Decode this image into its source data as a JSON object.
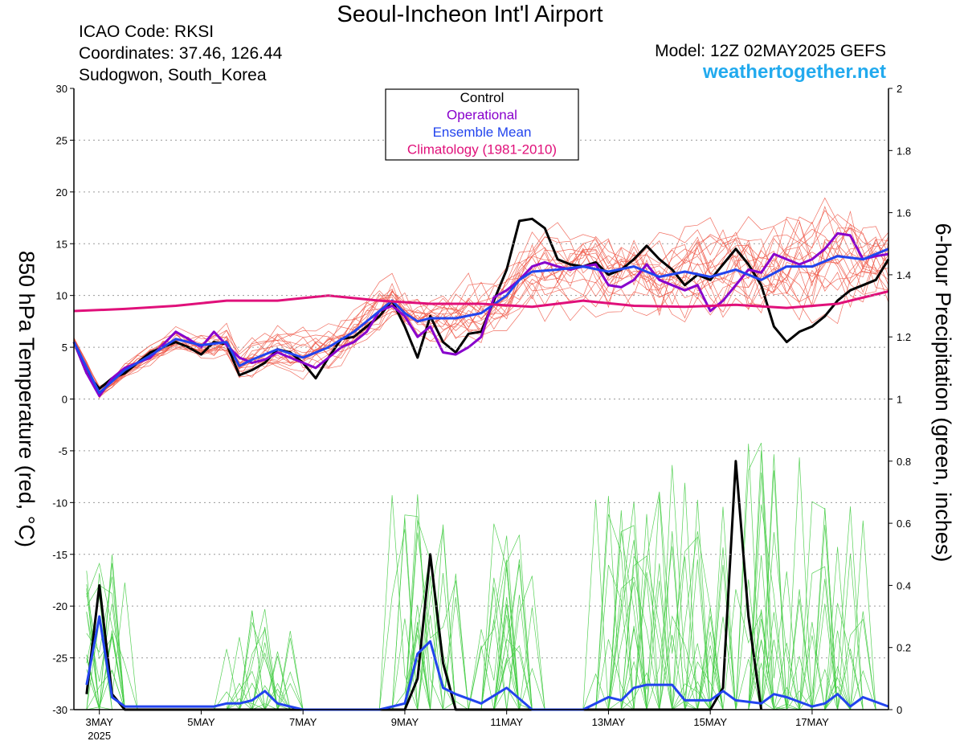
{
  "header": {
    "title": "Seoul-Incheon Int'l Airport",
    "icao": "ICAO Code: RKSI",
    "coordinates": "Coordinates: 37.46, 126.44",
    "location": "Sudogwon, South_Korea",
    "model": "Model: 12Z 02MAY2025 GEFS",
    "site": "weathertogether.net"
  },
  "colors": {
    "control": "#000000",
    "operational": "#8800cc",
    "ensemble_mean": "#2244ee",
    "climatology": "#e0107a",
    "members_temp": "#ee5544",
    "members_precip": "#44cc44",
    "site": "#22aaee"
  },
  "chart_data": {
    "type": "line",
    "grid": "horizontal dotted",
    "legend_placement": "top-center",
    "legend": [
      {
        "label": "Control",
        "color": "#000000"
      },
      {
        "label": "Operational",
        "color": "#8800cc"
      },
      {
        "label": "Ensemble Mean",
        "color": "#2244ee"
      },
      {
        "label": "Climatology (1981-2010)",
        "color": "#e0107a"
      }
    ],
    "y_left": {
      "label": "850 hPa Temperature (red, °C)",
      "range": [
        -30,
        30
      ],
      "ticks": [
        -30,
        -25,
        -20,
        -15,
        -10,
        -5,
        0,
        5,
        10,
        15,
        20,
        25,
        30
      ]
    },
    "y_right": {
      "label": "6-hour Precipitation (green, inches)",
      "range": [
        0,
        2
      ],
      "ticks": [
        0,
        0.2,
        0.4,
        0.6,
        0.8,
        1,
        1.2,
        1.4,
        1.6,
        1.8,
        2
      ]
    },
    "x": {
      "range_days": [
        2.5,
        18.5
      ],
      "ticks": [
        {
          "day": 3,
          "label": "3MAY"
        },
        {
          "day": 5,
          "label": "5MAY"
        },
        {
          "day": 7,
          "label": "7MAY"
        },
        {
          "day": 9,
          "label": "9MAY"
        },
        {
          "day": 11,
          "label": "11MAY"
        },
        {
          "day": 13,
          "label": "13MAY"
        },
        {
          "day": 15,
          "label": "15MAY"
        },
        {
          "day": 17,
          "label": "17MAY"
        }
      ],
      "year_label": "2025"
    },
    "temperature_series": [
      {
        "name": "Control",
        "points": [
          [
            2.5,
            5.5
          ],
          [
            2.75,
            2.5
          ],
          [
            3,
            1
          ],
          [
            3.25,
            2
          ],
          [
            3.5,
            2.5
          ],
          [
            4,
            4.5
          ],
          [
            4.5,
            5.5
          ],
          [
            4.75,
            5
          ],
          [
            5,
            4.3
          ],
          [
            5.25,
            5.5
          ],
          [
            5.5,
            5.3
          ],
          [
            5.75,
            2.3
          ],
          [
            6,
            2.8
          ],
          [
            6.25,
            3.5
          ],
          [
            6.5,
            4.8
          ],
          [
            6.75,
            4.5
          ],
          [
            7,
            3.5
          ],
          [
            7.25,
            2
          ],
          [
            7.5,
            4
          ],
          [
            7.75,
            5.8
          ],
          [
            8,
            6
          ],
          [
            8.25,
            7
          ],
          [
            8.5,
            8
          ],
          [
            8.75,
            9.5
          ],
          [
            9,
            7
          ],
          [
            9.25,
            4
          ],
          [
            9.5,
            8
          ],
          [
            9.75,
            5.5
          ],
          [
            10,
            4.5
          ],
          [
            10.25,
            6.3
          ],
          [
            10.5,
            6.5
          ],
          [
            10.75,
            9.5
          ],
          [
            11,
            12.5
          ],
          [
            11.25,
            17.2
          ],
          [
            11.5,
            17.4
          ],
          [
            11.75,
            16.5
          ],
          [
            12,
            13.5
          ],
          [
            12.25,
            13
          ],
          [
            12.5,
            12.8
          ],
          [
            12.75,
            13.2
          ],
          [
            13,
            12
          ],
          [
            13.25,
            12.5
          ],
          [
            13.5,
            13.5
          ],
          [
            13.75,
            14.8
          ],
          [
            14,
            13.5
          ],
          [
            14.25,
            12.5
          ],
          [
            14.5,
            11
          ],
          [
            14.75,
            12
          ],
          [
            15,
            11.5
          ],
          [
            15.25,
            13
          ],
          [
            15.5,
            14.5
          ],
          [
            15.75,
            13
          ],
          [
            16,
            11
          ],
          [
            16.25,
            7
          ],
          [
            16.5,
            5.5
          ],
          [
            16.75,
            6.5
          ],
          [
            17,
            7
          ],
          [
            17.25,
            8
          ],
          [
            17.5,
            9.5
          ],
          [
            17.75,
            10.5
          ],
          [
            18,
            11
          ],
          [
            18.25,
            11.5
          ],
          [
            18.5,
            13.5
          ]
        ]
      },
      {
        "name": "Operational",
        "points": [
          [
            2.5,
            5.5
          ],
          [
            2.75,
            2.5
          ],
          [
            3,
            0.3
          ],
          [
            3.25,
            2
          ],
          [
            3.5,
            3
          ],
          [
            4,
            4
          ],
          [
            4.5,
            6.5
          ],
          [
            4.75,
            5.8
          ],
          [
            5,
            5
          ],
          [
            5.25,
            6.5
          ],
          [
            5.5,
            5.2
          ],
          [
            5.75,
            4
          ],
          [
            6,
            3.5
          ],
          [
            6.25,
            3.8
          ],
          [
            6.5,
            4.5
          ],
          [
            6.75,
            4
          ],
          [
            7,
            3.5
          ],
          [
            7.25,
            3
          ],
          [
            7.5,
            4
          ],
          [
            7.75,
            5
          ],
          [
            8,
            5.5
          ],
          [
            8.25,
            6.5
          ],
          [
            8.5,
            8.5
          ],
          [
            8.75,
            9
          ],
          [
            9,
            8
          ],
          [
            9.25,
            6
          ],
          [
            9.5,
            7
          ],
          [
            9.75,
            4.5
          ],
          [
            10,
            4.3
          ],
          [
            10.25,
            5
          ],
          [
            10.5,
            6
          ],
          [
            10.75,
            9.8
          ],
          [
            11,
            10.5
          ],
          [
            11.25,
            11.5
          ],
          [
            11.5,
            12.8
          ],
          [
            11.75,
            13.2
          ],
          [
            12,
            12.8
          ],
          [
            12.25,
            12.5
          ],
          [
            12.5,
            12.8
          ],
          [
            12.75,
            13
          ],
          [
            13,
            11
          ],
          [
            13.25,
            10.8
          ],
          [
            13.5,
            11.5
          ],
          [
            13.75,
            13
          ],
          [
            14,
            11.5
          ],
          [
            14.25,
            11
          ],
          [
            14.5,
            10.5
          ],
          [
            14.75,
            11
          ],
          [
            15,
            8.5
          ],
          [
            15.25,
            9.5
          ],
          [
            15.5,
            11
          ],
          [
            15.75,
            12.5
          ],
          [
            16,
            12.2
          ],
          [
            16.25,
            14
          ],
          [
            16.5,
            13.5
          ],
          [
            16.75,
            13
          ],
          [
            17,
            13.5
          ],
          [
            17.25,
            14.5
          ],
          [
            17.5,
            16
          ],
          [
            17.75,
            15.8
          ],
          [
            18,
            13.5
          ],
          [
            18.25,
            13.8
          ],
          [
            18.5,
            14
          ]
        ]
      },
      {
        "name": "Ensemble Mean",
        "points": [
          [
            2.5,
            5.5
          ],
          [
            3,
            0.6
          ],
          [
            3.5,
            2.8
          ],
          [
            4,
            4.2
          ],
          [
            4.5,
            5.8
          ],
          [
            5,
            5.2
          ],
          [
            5.5,
            5.5
          ],
          [
            5.75,
            3.2
          ],
          [
            6,
            3.8
          ],
          [
            6.5,
            4.8
          ],
          [
            7,
            4
          ],
          [
            7.5,
            5
          ],
          [
            8,
            6.5
          ],
          [
            8.5,
            8.5
          ],
          [
            8.75,
            9.5
          ],
          [
            9,
            8.3
          ],
          [
            9.25,
            7.5
          ],
          [
            9.5,
            7.8
          ],
          [
            10,
            7.8
          ],
          [
            10.5,
            8.3
          ],
          [
            11,
            10
          ],
          [
            11.25,
            11.5
          ],
          [
            11.5,
            12.3
          ],
          [
            12,
            12.5
          ],
          [
            12.5,
            12.8
          ],
          [
            13,
            12.3
          ],
          [
            13.5,
            12.8
          ],
          [
            14,
            11.8
          ],
          [
            14.5,
            12.3
          ],
          [
            15,
            11.8
          ],
          [
            15.5,
            12.5
          ],
          [
            16,
            11.5
          ],
          [
            16.5,
            12.8
          ],
          [
            17,
            12.8
          ],
          [
            17.5,
            13.8
          ],
          [
            18,
            13.5
          ],
          [
            18.5,
            14.5
          ]
        ]
      },
      {
        "name": "Climatology (1981-2010)",
        "points": [
          [
            2.5,
            8.5
          ],
          [
            3.5,
            8.7
          ],
          [
            4.5,
            9
          ],
          [
            5.5,
            9.5
          ],
          [
            6.5,
            9.5
          ],
          [
            7.5,
            10
          ],
          [
            8.5,
            9.5
          ],
          [
            9.5,
            9.2
          ],
          [
            10.5,
            9.2
          ],
          [
            11.5,
            8.9
          ],
          [
            12.5,
            9.5
          ],
          [
            13.5,
            9
          ],
          [
            14.5,
            8.9
          ],
          [
            15.5,
            9.1
          ],
          [
            16.5,
            8.8
          ],
          [
            17.5,
            9.2
          ],
          [
            18.5,
            10.4
          ]
        ]
      }
    ],
    "precip_series": [
      {
        "name": "Control",
        "points": [
          [
            2.75,
            0.05
          ],
          [
            3,
            0.4
          ],
          [
            3.25,
            0.05
          ],
          [
            3.5,
            0
          ],
          [
            9,
            0
          ],
          [
            9.25,
            0.1
          ],
          [
            9.5,
            0.5
          ],
          [
            9.75,
            0.15
          ],
          [
            10,
            0
          ],
          [
            15,
            0
          ],
          [
            15.25,
            0.07
          ],
          [
            15.5,
            0.8
          ],
          [
            15.75,
            0.3
          ],
          [
            16,
            0
          ]
        ]
      },
      {
        "name": "Ensemble Mean",
        "points": [
          [
            2.75,
            0.08
          ],
          [
            3,
            0.3
          ],
          [
            3.25,
            0.04
          ],
          [
            3.5,
            0.01
          ],
          [
            5.25,
            0.01
          ],
          [
            5.5,
            0.02
          ],
          [
            5.75,
            0.02
          ],
          [
            6,
            0.03
          ],
          [
            6.25,
            0.06
          ],
          [
            6.5,
            0.02
          ],
          [
            7,
            0
          ],
          [
            8.5,
            0
          ],
          [
            9,
            0.02
          ],
          [
            9.25,
            0.18
          ],
          [
            9.5,
            0.22
          ],
          [
            9.75,
            0.07
          ],
          [
            10,
            0.05
          ],
          [
            10.5,
            0.02
          ],
          [
            11,
            0.07
          ],
          [
            11.5,
            0
          ],
          [
            12.5,
            0
          ],
          [
            13,
            0.04
          ],
          [
            13.25,
            0.03
          ],
          [
            13.5,
            0.07
          ],
          [
            13.75,
            0.08
          ],
          [
            14,
            0.08
          ],
          [
            14.25,
            0.08
          ],
          [
            14.5,
            0.03
          ],
          [
            15,
            0.03
          ],
          [
            15.25,
            0.06
          ],
          [
            15.5,
            0.03
          ],
          [
            16,
            0.02
          ],
          [
            16.25,
            0.05
          ],
          [
            16.5,
            0.04
          ],
          [
            17,
            0.01
          ],
          [
            17.25,
            0.02
          ],
          [
            17.5,
            0.05
          ],
          [
            17.75,
            0.01
          ],
          [
            18,
            0.04
          ],
          [
            18.5,
            0.01
          ]
        ]
      }
    ]
  }
}
